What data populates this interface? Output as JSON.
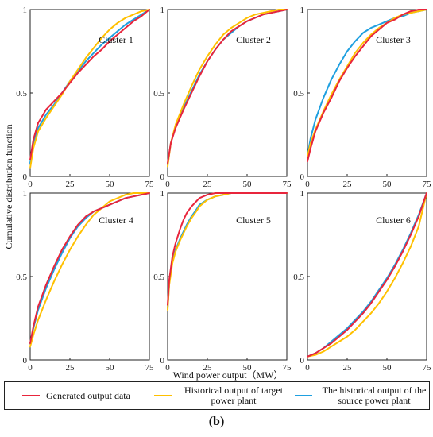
{
  "figure": {
    "caption": "(b)",
    "ylabel": "Cumulative distribution function",
    "xlabel": "Wind power output（MW）"
  },
  "legend": [
    {
      "name": "Generated output data",
      "color": "#e8253c"
    },
    {
      "name": "Historical output of target power plant",
      "color": "#ffc000"
    },
    {
      "name": "The historical output of the source power plant",
      "color": "#1fa0e0"
    }
  ],
  "chart_data": [
    {
      "type": "line",
      "title": "Cluster 1",
      "xlim": [
        0,
        75
      ],
      "ylim": [
        0,
        1
      ],
      "xticks": [
        0,
        25,
        50,
        75
      ],
      "yticks": [
        0,
        0.5,
        1
      ],
      "series": [
        {
          "name": "Generated output data",
          "color": "#e8253c",
          "x": [
            0,
            2,
            5,
            10,
            15,
            20,
            25,
            30,
            35,
            40,
            45,
            50,
            55,
            60,
            65,
            70,
            75
          ],
          "y": [
            0.1,
            0.22,
            0.32,
            0.4,
            0.45,
            0.5,
            0.56,
            0.62,
            0.67,
            0.72,
            0.76,
            0.81,
            0.85,
            0.89,
            0.93,
            0.96,
            1.0
          ]
        },
        {
          "name": "Historical output of target power plant",
          "color": "#ffc000",
          "x": [
            0,
            2,
            5,
            10,
            15,
            20,
            25,
            30,
            35,
            40,
            45,
            50,
            55,
            60,
            65,
            70,
            75
          ],
          "y": [
            0.05,
            0.17,
            0.27,
            0.35,
            0.42,
            0.49,
            0.57,
            0.64,
            0.71,
            0.77,
            0.83,
            0.88,
            0.92,
            0.95,
            0.97,
            0.99,
            1.0
          ]
        },
        {
          "name": "The historical output of the source power plant",
          "color": "#1fa0e0",
          "x": [
            0,
            2,
            5,
            10,
            15,
            20,
            25,
            30,
            35,
            40,
            45,
            50,
            55,
            60,
            65,
            70,
            75
          ],
          "y": [
            0.08,
            0.2,
            0.29,
            0.37,
            0.43,
            0.5,
            0.57,
            0.63,
            0.69,
            0.74,
            0.79,
            0.83,
            0.87,
            0.91,
            0.94,
            0.97,
            1.0
          ]
        }
      ]
    },
    {
      "type": "line",
      "title": "Cluster 2",
      "xlim": [
        0,
        75
      ],
      "ylim": [
        0,
        1
      ],
      "xticks": [
        0,
        25,
        50,
        75
      ],
      "yticks": [
        0,
        0.5,
        1
      ],
      "series": [
        {
          "name": "Generated output data",
          "color": "#e8253c",
          "x": [
            0,
            2,
            5,
            10,
            15,
            20,
            25,
            30,
            35,
            40,
            45,
            50,
            55,
            60,
            65,
            70,
            75
          ],
          "y": [
            0.08,
            0.2,
            0.29,
            0.4,
            0.5,
            0.6,
            0.69,
            0.76,
            0.82,
            0.87,
            0.9,
            0.93,
            0.95,
            0.97,
            0.98,
            0.99,
            1.0
          ]
        },
        {
          "name": "Historical output of target power plant",
          "color": "#ffc000",
          "x": [
            0,
            2,
            5,
            10,
            15,
            20,
            25,
            30,
            35,
            40,
            45,
            50,
            55,
            60,
            65,
            70,
            75
          ],
          "y": [
            0.06,
            0.2,
            0.31,
            0.43,
            0.54,
            0.64,
            0.72,
            0.79,
            0.85,
            0.89,
            0.92,
            0.95,
            0.97,
            0.98,
            0.99,
            1.0,
            1.0
          ]
        },
        {
          "name": "The historical output of the source power plant",
          "color": "#1fa0e0",
          "x": [
            0,
            2,
            5,
            10,
            15,
            20,
            25,
            30,
            35,
            40,
            45,
            50,
            55,
            60,
            65,
            70,
            75
          ],
          "y": [
            0.07,
            0.2,
            0.3,
            0.41,
            0.51,
            0.61,
            0.69,
            0.76,
            0.82,
            0.86,
            0.9,
            0.93,
            0.95,
            0.97,
            0.98,
            0.99,
            1.0
          ]
        }
      ]
    },
    {
      "type": "line",
      "title": "Cluster 3",
      "xlim": [
        0,
        75
      ],
      "ylim": [
        0,
        1
      ],
      "xticks": [
        0,
        25,
        50,
        75
      ],
      "yticks": [
        0,
        0.5,
        1
      ],
      "series": [
        {
          "name": "Generated output data",
          "color": "#e8253c",
          "x": [
            0,
            2,
            5,
            10,
            15,
            20,
            25,
            30,
            35,
            40,
            45,
            50,
            55,
            60,
            65,
            70,
            75
          ],
          "y": [
            0.09,
            0.17,
            0.27,
            0.38,
            0.47,
            0.57,
            0.65,
            0.72,
            0.78,
            0.84,
            0.88,
            0.92,
            0.94,
            0.97,
            0.99,
            1.0,
            1.0
          ]
        },
        {
          "name": "Historical output of target power plant",
          "color": "#ffc000",
          "x": [
            0,
            2,
            5,
            10,
            15,
            20,
            25,
            30,
            35,
            40,
            45,
            50,
            55,
            60,
            65,
            70,
            75
          ],
          "y": [
            0.12,
            0.2,
            0.28,
            0.39,
            0.49,
            0.58,
            0.66,
            0.74,
            0.8,
            0.85,
            0.89,
            0.92,
            0.95,
            0.97,
            0.98,
            0.99,
            1.0
          ]
        },
        {
          "name": "The historical output of the source power plant",
          "color": "#1fa0e0",
          "x": [
            0,
            2,
            5,
            10,
            15,
            20,
            25,
            30,
            35,
            40,
            45,
            50,
            55,
            60,
            65,
            70,
            75
          ],
          "y": [
            0.12,
            0.23,
            0.34,
            0.47,
            0.58,
            0.67,
            0.75,
            0.81,
            0.86,
            0.89,
            0.91,
            0.93,
            0.95,
            0.96,
            0.98,
            0.99,
            1.0
          ]
        }
      ]
    },
    {
      "type": "line",
      "title": "Cluster 4",
      "xlim": [
        0,
        75
      ],
      "ylim": [
        0,
        1
      ],
      "xticks": [
        0,
        25,
        50,
        75
      ],
      "yticks": [
        0,
        0.5,
        1
      ],
      "series": [
        {
          "name": "Generated output data",
          "color": "#e8253c",
          "x": [
            0,
            2,
            5,
            10,
            15,
            20,
            25,
            30,
            35,
            40,
            45,
            50,
            55,
            60,
            65,
            70,
            75
          ],
          "y": [
            0.1,
            0.2,
            0.32,
            0.45,
            0.56,
            0.66,
            0.74,
            0.81,
            0.86,
            0.89,
            0.91,
            0.93,
            0.95,
            0.97,
            0.98,
            0.99,
            1.0
          ]
        },
        {
          "name": "Historical output of target power plant",
          "color": "#ffc000",
          "x": [
            0,
            2,
            5,
            10,
            15,
            20,
            25,
            30,
            35,
            40,
            45,
            50,
            55,
            60,
            65,
            70,
            75
          ],
          "y": [
            0.08,
            0.15,
            0.24,
            0.36,
            0.47,
            0.57,
            0.66,
            0.74,
            0.81,
            0.87,
            0.91,
            0.95,
            0.97,
            0.99,
            1.0,
            1.0,
            1.0
          ]
        },
        {
          "name": "The historical output of the source power plant",
          "color": "#1fa0e0",
          "x": [
            0,
            2,
            5,
            10,
            15,
            20,
            25,
            30,
            35,
            40,
            45,
            50,
            55,
            60,
            65,
            70,
            75
          ],
          "y": [
            0.1,
            0.19,
            0.3,
            0.43,
            0.54,
            0.64,
            0.73,
            0.8,
            0.85,
            0.89,
            0.91,
            0.93,
            0.95,
            0.97,
            0.98,
            0.99,
            1.0
          ]
        }
      ]
    },
    {
      "type": "line",
      "title": "Cluster 5",
      "xlim": [
        0,
        75
      ],
      "ylim": [
        0,
        1
      ],
      "xticks": [
        0,
        25,
        50,
        75
      ],
      "yticks": [
        0,
        0.5,
        1
      ],
      "series": [
        {
          "name": "Generated output data",
          "color": "#e8253c",
          "x": [
            0,
            1,
            3,
            5,
            8,
            10,
            12,
            15,
            18,
            20,
            25,
            30,
            35,
            40,
            50,
            60,
            75
          ],
          "y": [
            0.33,
            0.48,
            0.62,
            0.7,
            0.79,
            0.84,
            0.88,
            0.92,
            0.95,
            0.97,
            0.99,
            1.0,
            1.0,
            1.0,
            1.0,
            1.0,
            1.0
          ]
        },
        {
          "name": "Historical output of target power plant",
          "color": "#ffc000",
          "x": [
            0,
            1,
            3,
            5,
            8,
            10,
            12,
            15,
            18,
            20,
            25,
            30,
            35,
            40,
            50,
            60,
            75
          ],
          "y": [
            0.3,
            0.45,
            0.58,
            0.65,
            0.72,
            0.76,
            0.8,
            0.85,
            0.89,
            0.92,
            0.96,
            0.98,
            0.99,
            1.0,
            1.0,
            1.0,
            1.0
          ]
        },
        {
          "name": "The historical output of the source power plant",
          "color": "#1fa0e0",
          "x": [
            0,
            1,
            3,
            5,
            8,
            10,
            12,
            15,
            18,
            20,
            25,
            30,
            35,
            40,
            50,
            60,
            75
          ],
          "y": [
            0.31,
            0.46,
            0.59,
            0.66,
            0.73,
            0.77,
            0.81,
            0.86,
            0.9,
            0.93,
            0.96,
            0.98,
            0.99,
            1.0,
            1.0,
            1.0,
            1.0
          ]
        }
      ]
    },
    {
      "type": "line",
      "title": "Cluster 6",
      "xlim": [
        0,
        75
      ],
      "ylim": [
        0,
        1
      ],
      "xticks": [
        0,
        25,
        50,
        75
      ],
      "yticks": [
        0,
        0.5,
        1
      ],
      "series": [
        {
          "name": "Generated output data",
          "color": "#e8253c",
          "x": [
            0,
            5,
            10,
            15,
            20,
            25,
            30,
            35,
            40,
            45,
            50,
            55,
            60,
            65,
            70,
            75
          ],
          "y": [
            0.02,
            0.04,
            0.07,
            0.1,
            0.14,
            0.18,
            0.23,
            0.28,
            0.34,
            0.41,
            0.48,
            0.56,
            0.65,
            0.75,
            0.86,
            1.0
          ]
        },
        {
          "name": "Historical output of target power plant",
          "color": "#ffc000",
          "x": [
            0,
            5,
            10,
            15,
            20,
            25,
            30,
            35,
            40,
            45,
            50,
            55,
            60,
            65,
            70,
            75
          ],
          "y": [
            0.02,
            0.03,
            0.05,
            0.08,
            0.11,
            0.14,
            0.18,
            0.23,
            0.28,
            0.34,
            0.41,
            0.49,
            0.58,
            0.68,
            0.8,
            1.0
          ]
        },
        {
          "name": "The historical output of the source power plant",
          "color": "#1fa0e0",
          "x": [
            0,
            5,
            10,
            15,
            20,
            25,
            30,
            35,
            40,
            45,
            50,
            55,
            60,
            65,
            70,
            75
          ],
          "y": [
            0.02,
            0.04,
            0.07,
            0.11,
            0.15,
            0.19,
            0.24,
            0.29,
            0.35,
            0.42,
            0.49,
            0.57,
            0.66,
            0.76,
            0.87,
            1.0
          ]
        }
      ]
    }
  ]
}
